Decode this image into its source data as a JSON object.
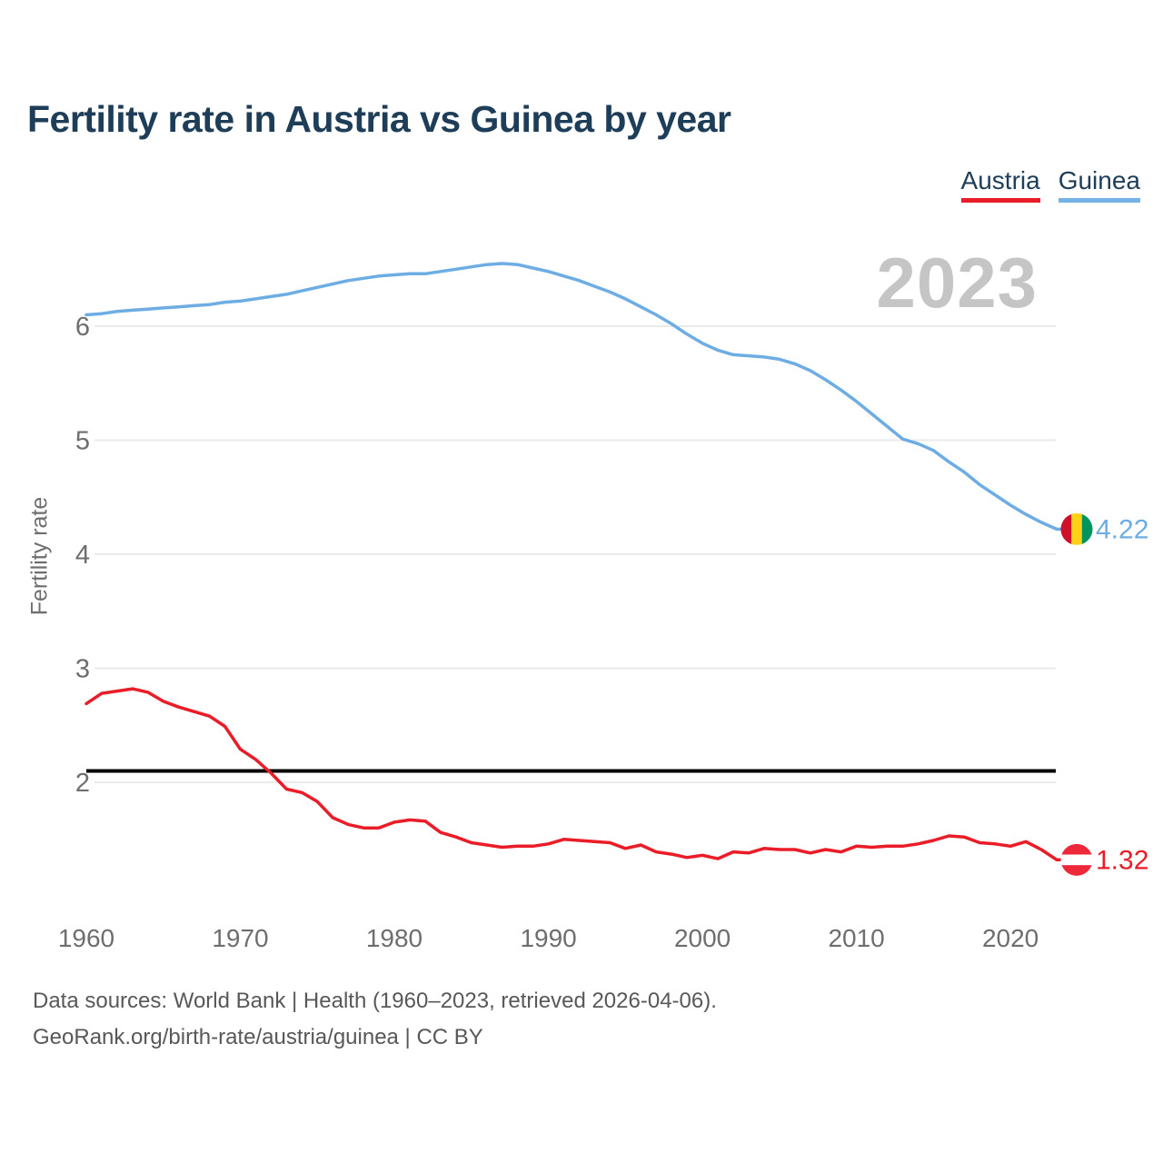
{
  "page": {
    "title": "Fertility rate in Austria vs Guinea by year",
    "footer_line1": "Data sources: World Bank | Health (1960–2023, retrieved 2026-04-06).",
    "footer_line2": "GeoRank.org/birth-rate/austria/guinea | CC BY"
  },
  "watermark": "2023",
  "legend": [
    {
      "label": "Austria",
      "color": "#ea1c27"
    },
    {
      "label": "Guinea",
      "color": "#74b2e8"
    }
  ],
  "theme": {
    "navy": "#1e3d58",
    "tick": "#6e6e6e",
    "footer": "#58585a",
    "watermark": "#c5c5c5",
    "grid": "#eaeaea",
    "austria_red": "#ea1c27",
    "guinea_blue": "#6dade3",
    "reference_black": "#000000"
  },
  "chart_data": {
    "type": "line",
    "title": "Fertility rate in Austria vs Guinea by year",
    "xlabel": "",
    "ylabel": "Fertility rate",
    "x": [
      1960,
      1961,
      1962,
      1963,
      1964,
      1965,
      1966,
      1967,
      1968,
      1969,
      1970,
      1971,
      1972,
      1973,
      1974,
      1975,
      1976,
      1977,
      1978,
      1979,
      1980,
      1981,
      1982,
      1983,
      1984,
      1985,
      1986,
      1987,
      1988,
      1989,
      1990,
      1991,
      1992,
      1993,
      1994,
      1995,
      1996,
      1997,
      1998,
      1999,
      2000,
      2001,
      2002,
      2003,
      2004,
      2005,
      2006,
      2007,
      2008,
      2009,
      2010,
      2011,
      2012,
      2013,
      2014,
      2015,
      2016,
      2017,
      2018,
      2019,
      2020,
      2021,
      2022,
      2023
    ],
    "series": [
      {
        "name": "Guinea",
        "color": "#6dade3",
        "values": [
          6.1,
          6.11,
          6.13,
          6.14,
          6.15,
          6.16,
          6.17,
          6.18,
          6.19,
          6.21,
          6.22,
          6.24,
          6.26,
          6.28,
          6.31,
          6.34,
          6.37,
          6.4,
          6.42,
          6.44,
          6.45,
          6.46,
          6.46,
          6.48,
          6.5,
          6.52,
          6.54,
          6.55,
          6.54,
          6.51,
          6.48,
          6.44,
          6.4,
          6.35,
          6.3,
          6.24,
          6.17,
          6.1,
          6.02,
          5.93,
          5.85,
          5.79,
          5.75,
          5.74,
          5.73,
          5.71,
          5.67,
          5.61,
          5.53,
          5.44,
          5.34,
          5.23,
          5.12,
          5.01,
          4.97,
          4.91,
          4.81,
          4.72,
          4.61,
          4.52,
          4.43,
          4.35,
          4.28,
          4.22
        ]
      },
      {
        "name": "Austria",
        "color": "#ea1c27",
        "values": [
          2.69,
          2.78,
          2.8,
          2.82,
          2.79,
          2.71,
          2.66,
          2.62,
          2.58,
          2.49,
          2.29,
          2.2,
          2.08,
          1.94,
          1.91,
          1.83,
          1.69,
          1.63,
          1.6,
          1.6,
          1.65,
          1.67,
          1.66,
          1.56,
          1.52,
          1.47,
          1.45,
          1.43,
          1.44,
          1.44,
          1.46,
          1.5,
          1.49,
          1.48,
          1.47,
          1.42,
          1.45,
          1.39,
          1.37,
          1.34,
          1.36,
          1.33,
          1.39,
          1.38,
          1.42,
          1.41,
          1.41,
          1.38,
          1.41,
          1.39,
          1.44,
          1.43,
          1.44,
          1.44,
          1.46,
          1.49,
          1.53,
          1.52,
          1.47,
          1.46,
          1.44,
          1.48,
          1.41,
          1.32
        ]
      }
    ],
    "yticks": [
      2,
      3,
      4,
      5,
      6
    ],
    "xticks": [
      1960,
      1970,
      1980,
      1990,
      2000,
      2010,
      2020
    ],
    "ylim": [
      1.15,
      6.75
    ],
    "xlim": [
      1960,
      2023
    ],
    "grid": "horizontal",
    "legend_position": "top-right",
    "reference_line": {
      "value": 2.1,
      "color": "#000000"
    },
    "end_labels": [
      {
        "series": "Guinea",
        "text": "4.22",
        "value": 4.22,
        "color": "#6dade3",
        "flag": "guinea-flag-icon",
        "flag_colors": [
          "#CE1126",
          "#FCD116",
          "#009460"
        ],
        "flag_orientation": "vertical"
      },
      {
        "series": "Austria",
        "text": "1.32",
        "value": 1.32,
        "color": "#ea1c27",
        "flag": "austria-flag-icon",
        "flag_colors": [
          "#ED2939",
          "#FFFFFF",
          "#ED2939"
        ],
        "flag_orientation": "horizontal"
      }
    ],
    "year_watermark": "2023"
  }
}
